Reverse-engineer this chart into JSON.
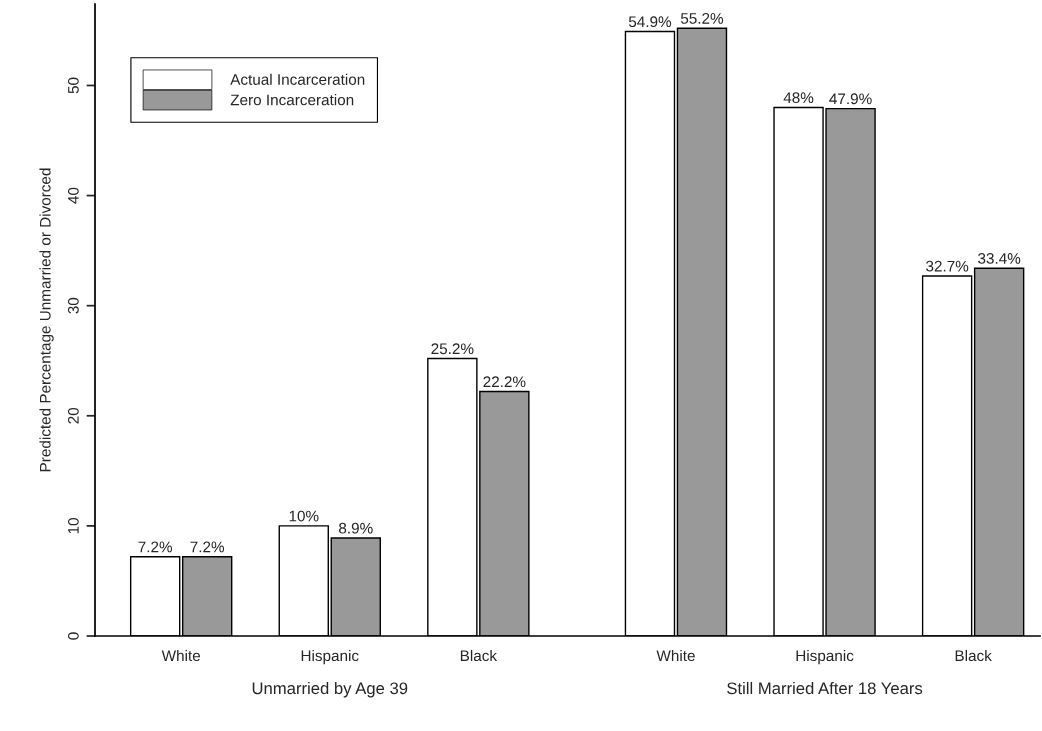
{
  "chart_data": {
    "type": "bar",
    "ylabel": "Predicted Percentage Unmarried or Divorced",
    "categories": [
      "White",
      "Hispanic",
      "Black",
      "White",
      "Hispanic",
      "Black"
    ],
    "series": [
      {
        "name": "Actual Incarceration",
        "color": "#ffffff",
        "values": [
          7.2,
          10,
          25.2,
          54.9,
          48,
          32.7
        ],
        "value_labels": [
          "7.2%",
          "10%",
          "25.2%",
          "54.9%",
          "48%",
          "32.7%"
        ]
      },
      {
        "name": "Zero Incarceration",
        "color": "#999999",
        "values": [
          7.2,
          8.9,
          22.2,
          55.2,
          47.9,
          33.4
        ],
        "value_labels": [
          "7.2%",
          "8.9%",
          "22.2%",
          "55.2%",
          "47.9%",
          "33.4%"
        ]
      }
    ],
    "annotations": [
      "Unmarried by Age 39",
      "Still Married After 18 Years"
    ],
    "ylim": [
      0,
      57.4
    ],
    "yticks": [
      0,
      10,
      20,
      30,
      40,
      50
    ],
    "grid": false,
    "legend": "top left"
  }
}
